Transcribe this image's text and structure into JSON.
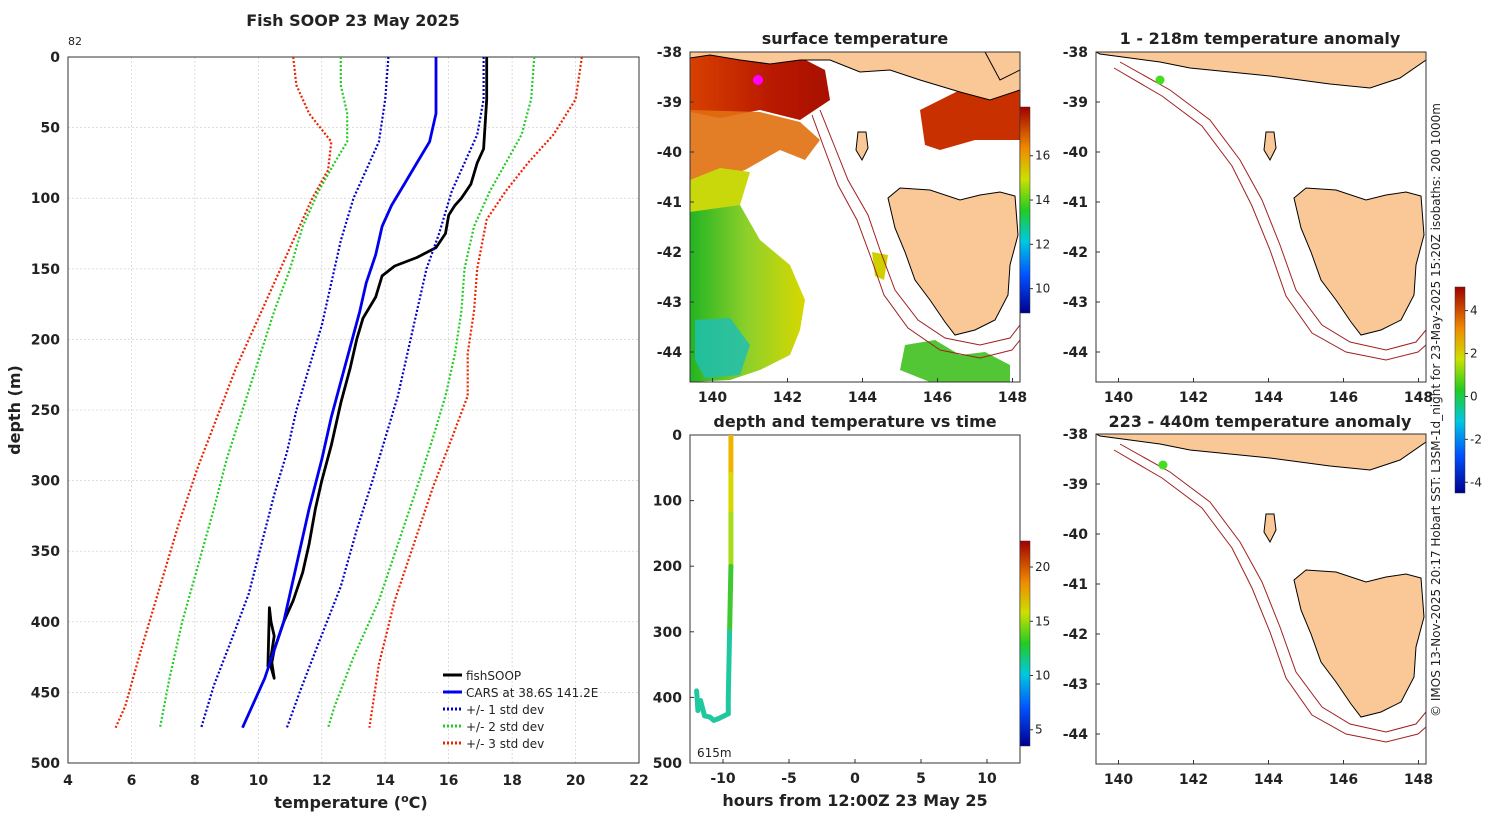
{
  "profile": {
    "title": "Fish SOOP 23 May 2025",
    "corner_label": "82",
    "xlabel_main": "temperature (",
    "xlabel_unit": "o",
    "xlabel_tail": "C)",
    "ylabel": "depth (m)",
    "legend": [
      "fishSOOP",
      "CARS at 38.6S 141.2E",
      "+/- 1 std dev",
      "+/- 2 std dev",
      "+/- 3 std dev"
    ]
  },
  "sst_map": {
    "title": "surface temperature"
  },
  "depth_time": {
    "title": "depth and temperature vs time",
    "xlabel": "hours from 12:00Z 23 May 25",
    "max_depth_label": "615m"
  },
  "anom1": {
    "title": "1 - 218m temperature anomaly"
  },
  "anom2": {
    "title": "223 - 440m temperature anomaly"
  },
  "side_text": "© IMOS 13-Nov-2025 20:17 Hobart SST: L3SM-1d_night for 23-May-2025 15:20Z isobaths: 200  1000m",
  "colors": {
    "fish": "#000000",
    "cars": "#0000ee",
    "std1": "#0000cc",
    "std2": "#22cc22",
    "std3": "#ee2200",
    "land": "#f9c896",
    "isobath": "#a02020"
  },
  "chart_data": [
    {
      "type": "line",
      "title": "Fish SOOP 23 May 2025",
      "xlabel": "temperature (oC)",
      "ylabel": "depth (m)",
      "xlim": [
        4,
        22
      ],
      "ylim": [
        500,
        0
      ],
      "xticks": [
        4,
        6,
        8,
        10,
        12,
        14,
        16,
        18,
        20,
        22
      ],
      "yticks": [
        0,
        50,
        100,
        150,
        200,
        250,
        300,
        350,
        400,
        450,
        500
      ],
      "grid": true,
      "legend_position": "bottom-right",
      "series": [
        {
          "name": "fishSOOP",
          "style": "solid",
          "color": "#000000",
          "points": [
            [
              17.2,
              0
            ],
            [
              17.2,
              30
            ],
            [
              17.1,
              65
            ],
            [
              16.9,
              75
            ],
            [
              16.7,
              90
            ],
            [
              16.4,
              100
            ],
            [
              16.2,
              105
            ],
            [
              16.0,
              112
            ],
            [
              15.9,
              125
            ],
            [
              15.6,
              135
            ],
            [
              15.0,
              142
            ],
            [
              14.3,
              148
            ],
            [
              13.9,
              155
            ],
            [
              13.7,
              170
            ],
            [
              13.3,
              185
            ],
            [
              13.1,
              200
            ],
            [
              12.9,
              220
            ],
            [
              12.6,
              245
            ],
            [
              12.3,
              275
            ],
            [
              12.0,
              300
            ],
            [
              11.8,
              320
            ],
            [
              11.6,
              345
            ],
            [
              11.4,
              365
            ],
            [
              11.1,
              385
            ],
            [
              10.8,
              400
            ],
            [
              10.5,
              420
            ],
            [
              10.4,
              432
            ],
            [
              10.5,
              440
            ],
            [
              10.4,
              425
            ],
            [
              10.5,
              410
            ],
            [
              10.4,
              400
            ],
            [
              10.35,
              390
            ],
            [
              10.3,
              432
            ]
          ]
        },
        {
          "name": "CARS at 38.6S 141.2E",
          "style": "solid",
          "color": "#0000ee",
          "points": [
            [
              15.6,
              0
            ],
            [
              15.6,
              20
            ],
            [
              15.6,
              40
            ],
            [
              15.4,
              60
            ],
            [
              15.0,
              75
            ],
            [
              14.6,
              90
            ],
            [
              14.2,
              105
            ],
            [
              13.9,
              120
            ],
            [
              13.7,
              140
            ],
            [
              13.4,
              160
            ],
            [
              13.2,
              180
            ],
            [
              12.9,
              205
            ],
            [
              12.6,
              230
            ],
            [
              12.3,
              255
            ],
            [
              12.0,
              285
            ],
            [
              11.6,
              320
            ],
            [
              11.2,
              360
            ],
            [
              10.8,
              400
            ],
            [
              10.2,
              440
            ],
            [
              9.5,
              475
            ]
          ]
        },
        {
          "name": "+/- 1 std dev",
          "style": "dotted",
          "color": "#0000cc",
          "points": [
            [
              14.1,
              0
            ],
            [
              14.0,
              30
            ],
            [
              13.8,
              60
            ],
            [
              13.4,
              80
            ],
            [
              13.0,
              100
            ],
            [
              12.6,
              130
            ],
            [
              12.3,
              160
            ],
            [
              12.0,
              190
            ],
            [
              11.6,
              220
            ],
            [
              11.2,
              250
            ],
            [
              10.9,
              280
            ],
            [
              10.5,
              310
            ],
            [
              10.1,
              345
            ],
            [
              9.7,
              380
            ],
            [
              9.2,
              410
            ],
            [
              8.6,
              445
            ],
            [
              8.2,
              475
            ]
          ]
        },
        {
          "name": "+/- 1 std dev (upper)",
          "style": "dotted",
          "color": "#0000cc",
          "points": [
            [
              17.1,
              0
            ],
            [
              17.1,
              30
            ],
            [
              16.9,
              55
            ],
            [
              16.5,
              75
            ],
            [
              16.1,
              95
            ],
            [
              15.7,
              125
            ],
            [
              15.3,
              150
            ],
            [
              15.0,
              180
            ],
            [
              14.7,
              210
            ],
            [
              14.4,
              240
            ],
            [
              14.0,
              270
            ],
            [
              13.6,
              300
            ],
            [
              13.1,
              335
            ],
            [
              12.6,
              375
            ],
            [
              11.9,
              415
            ],
            [
              11.3,
              450
            ],
            [
              10.9,
              475
            ]
          ]
        },
        {
          "name": "+/- 2 std dev",
          "style": "dotted",
          "color": "#22cc22",
          "points": [
            [
              12.6,
              0
            ],
            [
              12.6,
              20
            ],
            [
              12.8,
              40
            ],
            [
              12.8,
              60
            ],
            [
              12.4,
              75
            ],
            [
              11.9,
              95
            ],
            [
              11.4,
              120
            ],
            [
              11.0,
              150
            ],
            [
              10.5,
              180
            ],
            [
              10.0,
              215
            ],
            [
              9.5,
              250
            ],
            [
              9.0,
              285
            ],
            [
              8.6,
              320
            ],
            [
              8.1,
              360
            ],
            [
              7.6,
              400
            ],
            [
              7.2,
              440
            ],
            [
              6.9,
              475
            ]
          ]
        },
        {
          "name": "+/- 2 std dev (upper)",
          "style": "dotted",
          "color": "#22cc22",
          "points": [
            [
              18.7,
              0
            ],
            [
              18.6,
              30
            ],
            [
              18.3,
              55
            ],
            [
              17.8,
              75
            ],
            [
              17.3,
              95
            ],
            [
              16.8,
              120
            ],
            [
              16.5,
              150
            ],
            [
              16.4,
              180
            ],
            [
              16.2,
              210
            ],
            [
              15.9,
              240
            ],
            [
              15.5,
              270
            ],
            [
              15.0,
              305
            ],
            [
              14.4,
              345
            ],
            [
              13.8,
              385
            ],
            [
              13.0,
              425
            ],
            [
              12.4,
              460
            ],
            [
              12.2,
              475
            ]
          ]
        },
        {
          "name": "+/- 3 std dev",
          "style": "dotted",
          "color": "#ee2200",
          "points": [
            [
              11.1,
              0
            ],
            [
              11.2,
              20
            ],
            [
              11.6,
              40
            ],
            [
              12.3,
              60
            ],
            [
              12.2,
              80
            ],
            [
              11.7,
              100
            ],
            [
              11.1,
              130
            ],
            [
              10.5,
              160
            ],
            [
              9.9,
              190
            ],
            [
              9.3,
              220
            ],
            [
              8.7,
              255
            ],
            [
              8.1,
              290
            ],
            [
              7.5,
              330
            ],
            [
              6.9,
              375
            ],
            [
              6.3,
              420
            ],
            [
              5.8,
              460
            ],
            [
              5.5,
              475
            ]
          ]
        },
        {
          "name": "+/- 3 std dev (upper)",
          "style": "dotted",
          "color": "#ee2200",
          "points": [
            [
              20.2,
              0
            ],
            [
              20.0,
              30
            ],
            [
              19.3,
              55
            ],
            [
              18.5,
              75
            ],
            [
              17.8,
              95
            ],
            [
              17.2,
              115
            ],
            [
              16.9,
              150
            ],
            [
              16.8,
              180
            ],
            [
              16.6,
              210
            ],
            [
              16.6,
              240
            ],
            [
              16.1,
              270
            ],
            [
              15.5,
              305
            ],
            [
              14.9,
              345
            ],
            [
              14.3,
              385
            ],
            [
              13.8,
              430
            ],
            [
              13.5,
              475
            ]
          ]
        }
      ]
    },
    {
      "type": "heatmap",
      "title": "surface temperature",
      "xticks": [
        140,
        142,
        144,
        146,
        148
      ],
      "yticks": [
        -38,
        -39,
        -40,
        -41,
        -42,
        -43,
        -44
      ],
      "xlim": [
        139.4,
        148.2
      ],
      "ylim": [
        -44.6,
        -38
      ],
      "colorbar_ticks": [
        10,
        12,
        14,
        16
      ],
      "marker": {
        "lon": 141.2,
        "lat": -38.6,
        "color": "#ff00ff"
      }
    },
    {
      "type": "line",
      "title": "depth and temperature vs time",
      "xlabel": "hours from 12:00Z 23 May 25",
      "xlim": [
        -12.5,
        12.5
      ],
      "ylim": [
        500,
        0
      ],
      "xticks": [
        -10,
        -5,
        0,
        5,
        10
      ],
      "yticks": [
        0,
        100,
        200,
        300,
        400,
        500
      ],
      "colorbar_ticks": [
        5,
        10,
        15,
        20
      ],
      "annotation": "615m",
      "track": [
        [
          -9.4,
          0
        ],
        [
          -9.4,
          60
        ],
        [
          -9.4,
          120
        ],
        [
          -9.4,
          200
        ],
        [
          -9.5,
          300
        ],
        [
          -9.6,
          400
        ],
        [
          -9.6,
          425
        ],
        [
          -9.9,
          428
        ],
        [
          -10.3,
          432
        ],
        [
          -10.7,
          435
        ],
        [
          -11.0,
          430
        ],
        [
          -11.4,
          428
        ],
        [
          -11.7,
          405
        ],
        [
          -11.9,
          420
        ],
        [
          -12.0,
          390
        ]
      ]
    },
    {
      "type": "heatmap",
      "title": "1 - 218m temperature anomaly",
      "xticks": [
        140,
        142,
        144,
        146,
        148
      ],
      "yticks": [
        -38,
        -39,
        -40,
        -41,
        -42,
        -43,
        -44
      ],
      "marker": {
        "lon": 141.1,
        "lat": -38.6,
        "color": "#44dd22"
      },
      "colorbar_ticks": [
        -4,
        -2,
        0,
        2,
        4
      ]
    },
    {
      "type": "heatmap",
      "title": "223 - 440m temperature anomaly",
      "xticks": [
        140,
        142,
        144,
        146,
        148
      ],
      "yticks": [
        -38,
        -39,
        -40,
        -41,
        -42,
        -43,
        -44
      ],
      "marker": {
        "lon": 141.1,
        "lat": -38.6,
        "color": "#44dd22"
      }
    }
  ]
}
